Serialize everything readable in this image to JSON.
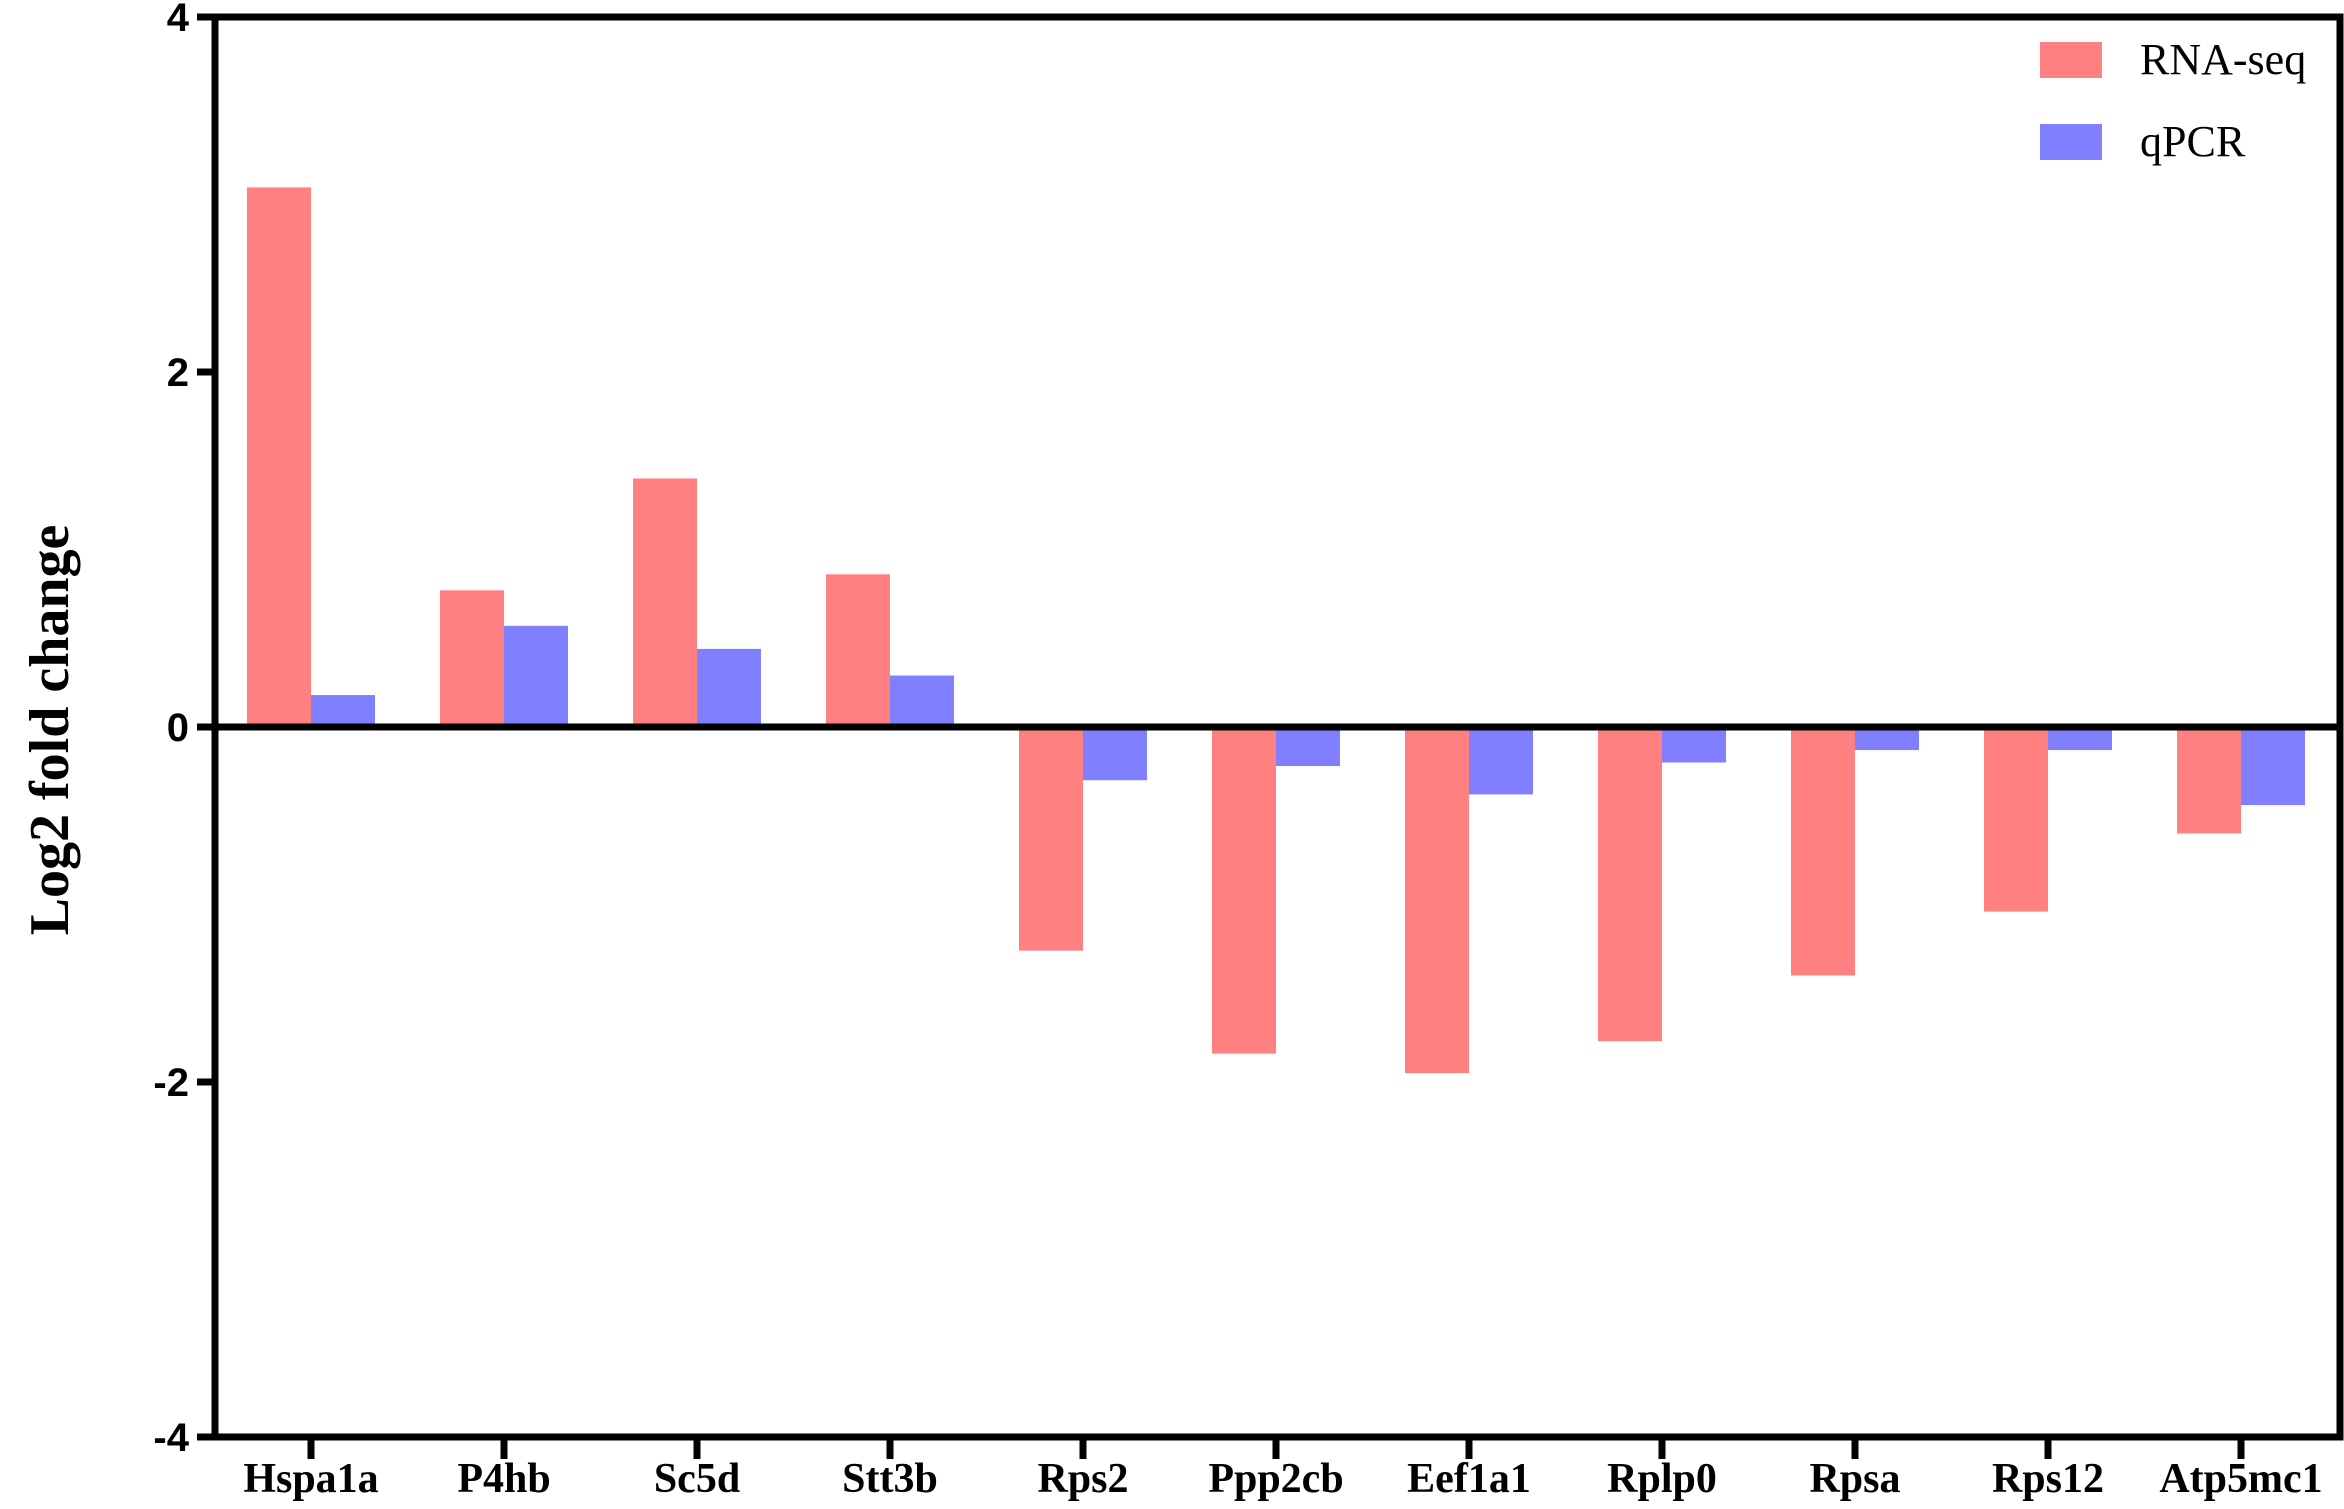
{
  "chart_data": {
    "type": "bar",
    "title": "",
    "xlabel": "",
    "ylabel": "Log2 fold change",
    "ylim": [
      -4,
      4
    ],
    "yticks": [
      -4,
      -2,
      0,
      2,
      4
    ],
    "ytick_labels": [
      "-4",
      "-2",
      "0",
      "2",
      "4"
    ],
    "grid": false,
    "legend_position": "top-right",
    "categories": [
      "Hspa1a",
      "P4hb",
      "Sc5d",
      "Stt3b",
      "Rps2",
      "Ppp2cb",
      "Eef1a1",
      "Rplp0",
      "Rpsa",
      "Rps12",
      "Atp5mc1"
    ],
    "series": [
      {
        "name": "RNA-seq",
        "color": "#ff8080",
        "values": [
          3.04,
          0.77,
          1.4,
          0.86,
          -1.26,
          -1.84,
          -1.95,
          -1.77,
          -1.4,
          -1.04,
          -0.6
        ]
      },
      {
        "name": "qPCR",
        "color": "#8080ff",
        "values": [
          0.18,
          0.57,
          0.44,
          0.29,
          -0.3,
          -0.22,
          -0.38,
          -0.2,
          -0.13,
          -0.13,
          -0.44
        ]
      }
    ]
  }
}
